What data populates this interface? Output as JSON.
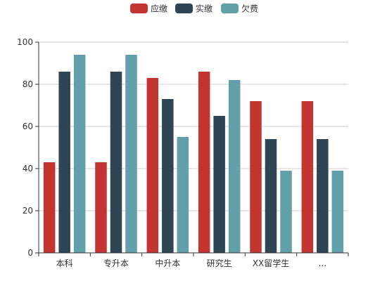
{
  "chart_data": {
    "type": "bar",
    "categories": [
      "本科",
      "专升本",
      "中升本",
      "研究生",
      "XX留学生",
      "..."
    ],
    "series": [
      {
        "name": "应缴",
        "color": "#c23531",
        "values": [
          43,
          43,
          83,
          86,
          72,
          72
        ]
      },
      {
        "name": "实缴",
        "color": "#2f4554",
        "values": [
          86,
          86,
          73,
          65,
          54,
          54
        ]
      },
      {
        "name": "欠费",
        "color": "#61a0a8",
        "values": [
          94,
          94,
          55,
          82,
          39,
          39
        ]
      }
    ],
    "ylim": [
      0,
      100
    ],
    "yticks": [
      0,
      20,
      40,
      60,
      80,
      100
    ],
    "grid": true,
    "legend_position": "top-center",
    "title": "",
    "xlabel": "",
    "ylabel": ""
  }
}
